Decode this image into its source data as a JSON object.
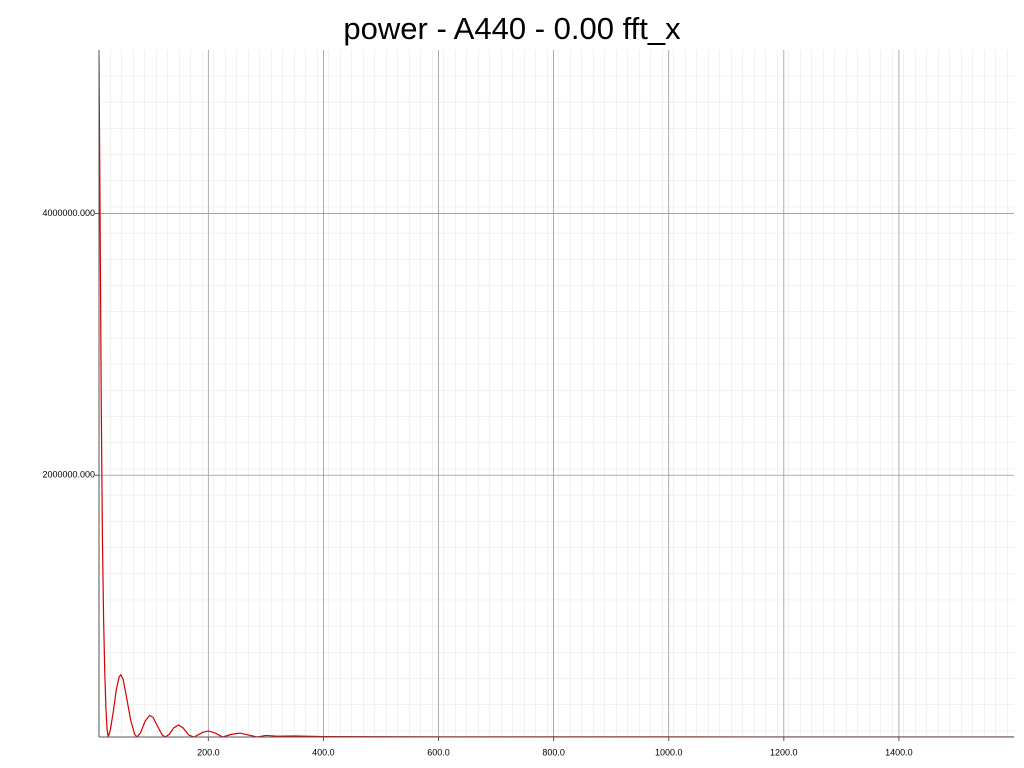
{
  "chart_data": {
    "type": "line",
    "title": "power - A440 - 0.00 fft_x",
    "x": [
      10,
      12,
      14,
      16,
      18,
      20,
      22,
      24,
      26,
      30,
      35,
      40,
      45,
      48,
      52,
      58,
      65,
      72,
      76,
      82,
      90,
      98,
      104,
      112,
      120,
      125,
      132,
      140,
      148,
      156,
      166,
      175,
      190,
      200,
      212,
      225,
      240,
      255,
      270,
      285,
      300,
      320,
      350,
      400,
      500,
      600,
      800,
      1000,
      1200,
      1400,
      1600
    ],
    "values": [
      5200000,
      3900000,
      2500000,
      1500000,
      900000,
      500000,
      220000,
      60000,
      0,
      60000,
      200000,
      360000,
      460000,
      475000,
      440000,
      300000,
      130000,
      20000,
      0,
      30000,
      120000,
      165000,
      150000,
      80000,
      15000,
      0,
      20000,
      70000,
      92000,
      70000,
      15000,
      0,
      35000,
      46000,
      30000,
      0,
      20000,
      30000,
      15000,
      0,
      12000,
      6000,
      8000,
      3000,
      2000,
      1500,
      1000,
      800,
      600,
      500,
      400
    ],
    "color": "#d40000",
    "xlim": [
      10,
      1600
    ],
    "ylim": [
      0,
      5250000
    ],
    "xticks": [
      {
        "value": 200,
        "label": "200.0"
      },
      {
        "value": 400,
        "label": "400.0"
      },
      {
        "value": 600,
        "label": "600.0"
      },
      {
        "value": 800,
        "label": "800.0"
      },
      {
        "value": 1000,
        "label": "1000.0"
      },
      {
        "value": 1200,
        "label": "1200.0"
      },
      {
        "value": 1400,
        "label": "1400.0"
      }
    ],
    "yticks": [
      {
        "value": 2000000,
        "label": "2000000.000"
      },
      {
        "value": 4000000,
        "label": "4000000.000"
      }
    ],
    "grid": true
  }
}
